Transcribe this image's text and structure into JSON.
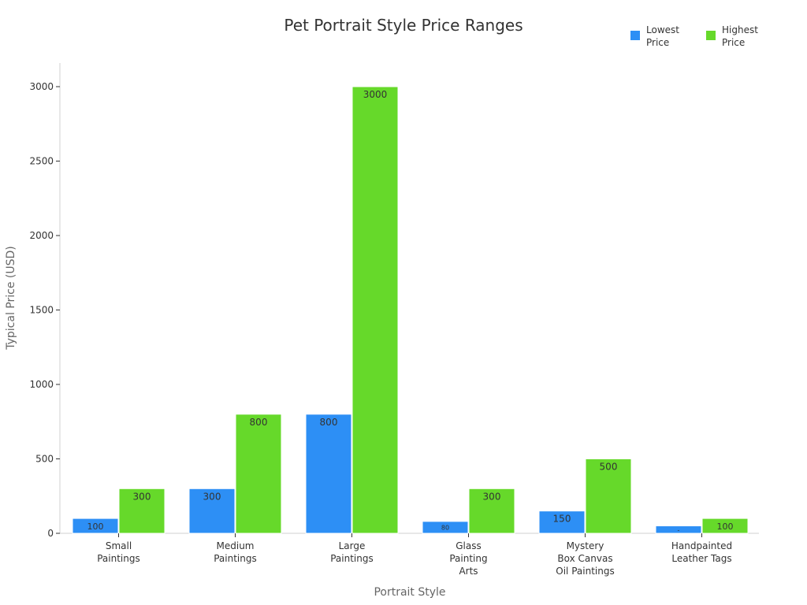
{
  "chart_data": {
    "type": "bar",
    "title": "Pet Portrait Style Price Ranges",
    "xlabel": "Portrait Style",
    "ylabel": "Typical Price (USD)",
    "categories": [
      [
        "Small",
        "Paintings"
      ],
      [
        "Medium",
        "Paintings"
      ],
      [
        "Large",
        "Paintings"
      ],
      [
        "Glass",
        "Painting",
        "Arts"
      ],
      [
        "Mystery",
        "Box Canvas",
        "Oil Paintings"
      ],
      [
        "Handpainted",
        "Leather Tags"
      ]
    ],
    "series": [
      {
        "name": "Lowest Price",
        "legend_lines": [
          "Lowest",
          "Price"
        ],
        "color": "#2d8ff5",
        "values": [
          100,
          300,
          800,
          80,
          150,
          50
        ],
        "labels": [
          "100",
          "300",
          "800",
          "80",
          "150",
          "-"
        ]
      },
      {
        "name": "Highest Price",
        "legend_lines": [
          "Highest",
          "Price"
        ],
        "color": "#66d92a",
        "values": [
          300,
          800,
          3000,
          300,
          500,
          100
        ],
        "labels": [
          "300",
          "800",
          "3000",
          "300",
          "500",
          "100"
        ]
      }
    ],
    "ylim": [
      0,
      3150
    ],
    "yticks": [
      0,
      500,
      1000,
      1500,
      2000,
      2500,
      3000
    ],
    "grid": false,
    "legend_position": "top-right"
  }
}
